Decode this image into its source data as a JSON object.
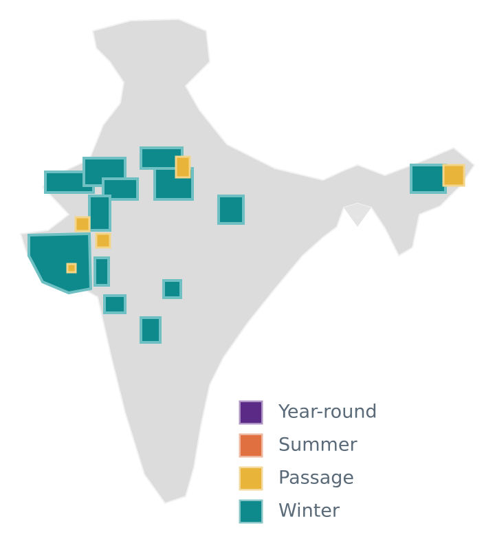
{
  "legend": {
    "items": [
      {
        "label": "Year-round",
        "color": "#5b2a86"
      },
      {
        "label": "Summer",
        "color": "#e07040"
      },
      {
        "label": "Passage",
        "color": "#e8b53a"
      },
      {
        "label": "Winter",
        "color": "#0f8a8c"
      }
    ]
  }
}
